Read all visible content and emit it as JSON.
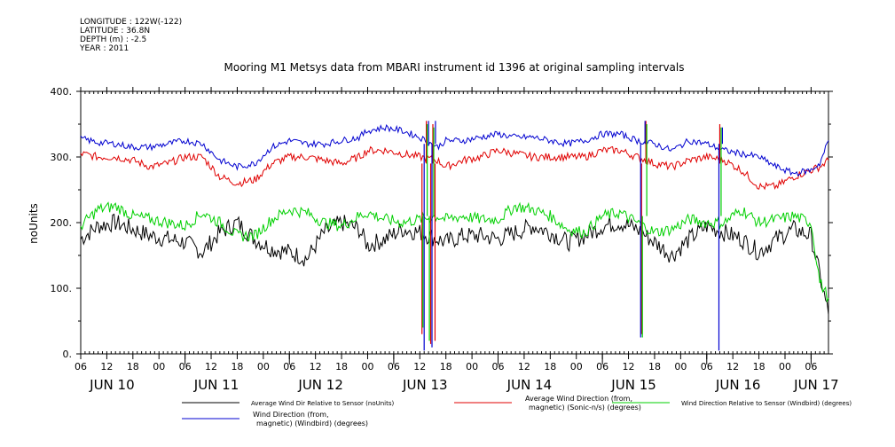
{
  "meta": {
    "longitude": "LONGITUDE : 122W(-122)",
    "latitude": "LATITUDE : 36.8N",
    "depth": "DEPTH (m) : -2.5",
    "year": "YEAR : 2011"
  },
  "chart_data": {
    "type": "line",
    "title": "Mooring M1 Metsys data from MBARI instrument id 1396 at original sampling intervals",
    "ylabel": "noUnits",
    "ylim": [
      0,
      400
    ],
    "yticks": [
      0,
      100,
      200,
      300,
      400
    ],
    "ytick_labels": [
      "0.",
      "100.",
      "200.",
      "300.",
      "400."
    ],
    "xlim": [
      0,
      172
    ],
    "hour_ticks": [
      "06",
      "12",
      "18",
      "00",
      "06",
      "12",
      "18",
      "00",
      "06",
      "12",
      "18",
      "00",
      "06",
      "12",
      "18",
      "00",
      "06",
      "12",
      "18",
      "00",
      "06",
      "12",
      "18",
      "00",
      "06",
      "12",
      "18",
      "00",
      "06"
    ],
    "date_labels": [
      "JUN 10",
      "JUN 11",
      "JUN 12",
      "JUN 13",
      "JUN 14",
      "JUN 15",
      "JUN 16",
      "JUN 17"
    ],
    "date_label_hours": [
      24,
      48,
      72,
      96,
      120,
      144,
      168
    ],
    "date_label_positions_hours": [
      6,
      30,
      54,
      78,
      102,
      126,
      150,
      168
    ],
    "colors": {
      "black": "#000000",
      "red": "#e00000",
      "green": "#00d000",
      "blue": "#0000d0"
    },
    "series": [
      {
        "name": "Average Wind Dir Relative to Sensor (noUnits)",
        "color": "#000000",
        "x": [
          0,
          4,
          8,
          12,
          16,
          20,
          24,
          28,
          32,
          36,
          40,
          44,
          48,
          52,
          56,
          60,
          64,
          66,
          70,
          74,
          78,
          82,
          84,
          88,
          92,
          96,
          100,
          104,
          108,
          112,
          116,
          120,
          124,
          128,
          132,
          136,
          140,
          144,
          148,
          152,
          156,
          160,
          164,
          168,
          170,
          172
        ],
        "y": [
          175,
          195,
          200,
          190,
          180,
          175,
          170,
          155,
          185,
          200,
          175,
          160,
          155,
          145,
          185,
          200,
          190,
          165,
          175,
          190,
          185,
          175,
          170,
          180,
          180,
          175,
          185,
          195,
          185,
          170,
          180,
          195,
          200,
          190,
          170,
          150,
          175,
          195,
          185,
          175,
          155,
          175,
          190,
          180,
          120,
          60
        ]
      },
      {
        "name": "Average Wind Direction (from, magnetic) (Sonic-n/s) (degrees)",
        "color": "#e00000",
        "x": [
          0,
          4,
          8,
          12,
          16,
          20,
          24,
          28,
          32,
          36,
          40,
          44,
          48,
          52,
          56,
          60,
          64,
          66,
          70,
          74,
          78,
          82,
          84,
          88,
          92,
          96,
          100,
          104,
          108,
          112,
          116,
          120,
          124,
          128,
          132,
          136,
          140,
          144,
          148,
          152,
          156,
          160,
          164,
          168,
          170,
          172
        ],
        "y": [
          305,
          300,
          300,
          295,
          285,
          290,
          300,
          300,
          270,
          260,
          265,
          290,
          300,
          300,
          295,
          290,
          300,
          310,
          310,
          305,
          300,
          295,
          285,
          295,
          300,
          310,
          305,
          300,
          300,
          300,
          300,
          310,
          310,
          300,
          290,
          285,
          295,
          300,
          295,
          280,
          255,
          255,
          270,
          280,
          285,
          295
        ]
      },
      {
        "name": "Wind Direction Relative to Sensor (Windbird) (degrees)",
        "color": "#00d000",
        "x": [
          0,
          4,
          8,
          12,
          16,
          20,
          24,
          28,
          32,
          36,
          40,
          44,
          48,
          52,
          56,
          60,
          64,
          66,
          70,
          74,
          78,
          82,
          84,
          88,
          92,
          96,
          100,
          104,
          108,
          112,
          116,
          120,
          124,
          128,
          132,
          136,
          140,
          144,
          148,
          152,
          156,
          160,
          164,
          168,
          170,
          172
        ],
        "y": [
          195,
          220,
          225,
          210,
          205,
          200,
          195,
          215,
          200,
          180,
          180,
          205,
          220,
          215,
          200,
          195,
          210,
          215,
          205,
          200,
          205,
          210,
          205,
          210,
          205,
          205,
          225,
          220,
          210,
          190,
          185,
          210,
          215,
          200,
          185,
          190,
          205,
          200,
          200,
          220,
          200,
          205,
          210,
          200,
          110,
          85
        ]
      },
      {
        "name": "Wind Direction (from, magnetic) (Windbird) (degrees)",
        "color": "#0000d0",
        "x": [
          0,
          4,
          8,
          12,
          16,
          20,
          24,
          28,
          32,
          36,
          40,
          44,
          48,
          52,
          56,
          60,
          64,
          66,
          70,
          74,
          78,
          82,
          84,
          88,
          92,
          96,
          100,
          104,
          108,
          112,
          116,
          120,
          124,
          128,
          132,
          136,
          140,
          144,
          148,
          152,
          156,
          160,
          164,
          168,
          170,
          172
        ],
        "y": [
          328,
          322,
          320,
          315,
          315,
          320,
          325,
          320,
          295,
          285,
          290,
          315,
          325,
          320,
          320,
          325,
          330,
          340,
          345,
          340,
          330,
          315,
          325,
          325,
          330,
          335,
          330,
          330,
          325,
          320,
          325,
          335,
          335,
          325,
          320,
          310,
          325,
          320,
          310,
          305,
          300,
          285,
          275,
          280,
          290,
          325
        ]
      }
    ],
    "spikes": {
      "red": [
        [
          78.5,
          30
        ],
        [
          79.5,
          355
        ],
        [
          80.5,
          15
        ],
        [
          81,
          350
        ],
        [
          81.5,
          20
        ],
        [
          129,
          30
        ],
        [
          130,
          355
        ],
        [
          147,
          350
        ]
      ],
      "green": [
        [
          78.7,
          40
        ],
        [
          79.7,
          350
        ],
        [
          80.2,
          20
        ],
        [
          81.2,
          345
        ],
        [
          129.2,
          25
        ],
        [
          130.2,
          350
        ],
        [
          147.3,
          345
        ]
      ],
      "blue": [
        [
          79,
          5
        ],
        [
          80,
          355
        ],
        [
          80.8,
          10
        ],
        [
          81.6,
          355
        ],
        [
          128.8,
          25
        ],
        [
          129.8,
          355
        ],
        [
          146.8,
          5
        ],
        [
          147.6,
          345
        ]
      ]
    },
    "legend": [
      {
        "label1": "Average Wind Dir Relative to Sensor (noUnits)",
        "label2": "",
        "color": "#000000"
      },
      {
        "label1": "Average Wind Direction (from,",
        "label2": "magnetic) (Sonic-n/s) (degrees)",
        "color": "#e00000"
      },
      {
        "label1": "Wind Direction Relative to Sensor (Windbird) (degrees)",
        "label2": "",
        "color": "#00d000"
      },
      {
        "label1": "Wind Direction (from,",
        "label2": "magnetic) (Windbird) (degrees)",
        "color": "#0000d0"
      }
    ]
  }
}
